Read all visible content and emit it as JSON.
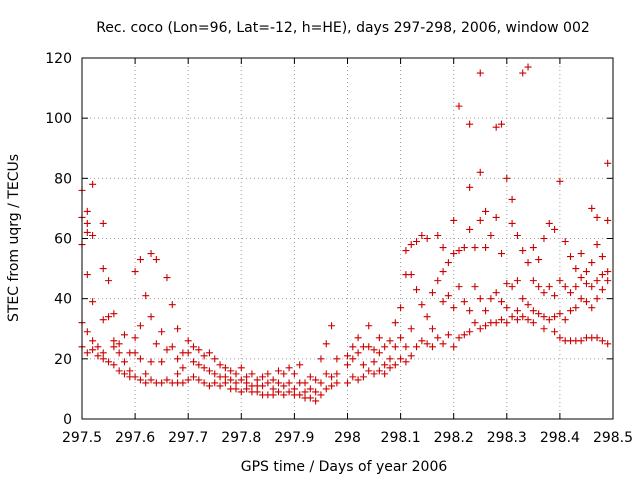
{
  "chart_data": {
    "type": "scatter",
    "title": "Rec. coco (Lon=96, Lat=-12, h=HE), days 297-298, 2006, window 002",
    "xlabel": "GPS time / Days of year 2006",
    "ylabel": "STEC from uqrg / TECUs",
    "xlim": [
      297.5,
      298.5
    ],
    "ylim": [
      0,
      120
    ],
    "x_ticks": [
      297.5,
      297.6,
      297.7,
      297.8,
      297.9,
      298,
      298.1,
      298.2,
      298.3,
      298.4,
      298.5
    ],
    "x_tick_labels": [
      "297.5",
      "297.6",
      "297.7",
      "297.8",
      "297.9",
      "298",
      "298.1",
      "298.2",
      "298.3",
      "298.4",
      "298.5"
    ],
    "y_ticks": [
      0,
      20,
      40,
      60,
      80,
      100,
      120
    ],
    "y_tick_labels": [
      "0",
      "20",
      "40",
      "60",
      "80",
      "100",
      "120"
    ],
    "grid": true,
    "marker": "plus",
    "color": "#cc0000",
    "points": [
      [
        297.5,
        76
      ],
      [
        297.5,
        67
      ],
      [
        297.5,
        58
      ],
      [
        297.5,
        24
      ],
      [
        297.5,
        32
      ],
      [
        297.51,
        69
      ],
      [
        297.51,
        65
      ],
      [
        297.51,
        62
      ],
      [
        297.51,
        48
      ],
      [
        297.51,
        29
      ],
      [
        297.51,
        22
      ],
      [
        297.52,
        78
      ],
      [
        297.52,
        61
      ],
      [
        297.52,
        39
      ],
      [
        297.52,
        26
      ],
      [
        297.52,
        23
      ],
      [
        297.53,
        24
      ],
      [
        297.53,
        21
      ],
      [
        297.54,
        65
      ],
      [
        297.54,
        50
      ],
      [
        297.54,
        33
      ],
      [
        297.54,
        22
      ],
      [
        297.54,
        20
      ],
      [
        297.55,
        46
      ],
      [
        297.55,
        34
      ],
      [
        297.55,
        19
      ],
      [
        297.56,
        35
      ],
      [
        297.56,
        26
      ],
      [
        297.56,
        24
      ],
      [
        297.56,
        18
      ],
      [
        297.57,
        25
      ],
      [
        297.57,
        22
      ],
      [
        297.57,
        16
      ],
      [
        297.58,
        28
      ],
      [
        297.58,
        19
      ],
      [
        297.58,
        15
      ],
      [
        297.59,
        22
      ],
      [
        297.59,
        16
      ],
      [
        297.59,
        14
      ],
      [
        297.6,
        49
      ],
      [
        297.6,
        27
      ],
      [
        297.6,
        22
      ],
      [
        297.6,
        14
      ],
      [
        297.61,
        53
      ],
      [
        297.61,
        31
      ],
      [
        297.61,
        20
      ],
      [
        297.61,
        13
      ],
      [
        297.62,
        41
      ],
      [
        297.62,
        15
      ],
      [
        297.62,
        12
      ],
      [
        297.63,
        55
      ],
      [
        297.63,
        34
      ],
      [
        297.63,
        19
      ],
      [
        297.63,
        13
      ],
      [
        297.64,
        53
      ],
      [
        297.64,
        25
      ],
      [
        297.64,
        12
      ],
      [
        297.65,
        29
      ],
      [
        297.65,
        19
      ],
      [
        297.65,
        12
      ],
      [
        297.66,
        47
      ],
      [
        297.66,
        23
      ],
      [
        297.66,
        13
      ],
      [
        297.67,
        38
      ],
      [
        297.67,
        24
      ],
      [
        297.67,
        12
      ],
      [
        297.68,
        30
      ],
      [
        297.68,
        20
      ],
      [
        297.68,
        15
      ],
      [
        297.68,
        12
      ],
      [
        297.69,
        22
      ],
      [
        297.69,
        17
      ],
      [
        297.69,
        12
      ],
      [
        297.7,
        26
      ],
      [
        297.7,
        22
      ],
      [
        297.7,
        13
      ],
      [
        297.71,
        24
      ],
      [
        297.71,
        19
      ],
      [
        297.71,
        14
      ],
      [
        297.72,
        23
      ],
      [
        297.72,
        18
      ],
      [
        297.72,
        13
      ],
      [
        297.73,
        21
      ],
      [
        297.73,
        17
      ],
      [
        297.73,
        12
      ],
      [
        297.74,
        22
      ],
      [
        297.74,
        16
      ],
      [
        297.74,
        11
      ],
      [
        297.75,
        20
      ],
      [
        297.75,
        15
      ],
      [
        297.75,
        12
      ],
      [
        297.76,
        18
      ],
      [
        297.76,
        14
      ],
      [
        297.76,
        11
      ],
      [
        297.77,
        17
      ],
      [
        297.77,
        14
      ],
      [
        297.77,
        12
      ],
      [
        297.78,
        16
      ],
      [
        297.78,
        13
      ],
      [
        297.78,
        10
      ],
      [
        297.79,
        15
      ],
      [
        297.79,
        12
      ],
      [
        297.79,
        10
      ],
      [
        297.8,
        17
      ],
      [
        297.8,
        13
      ],
      [
        297.8,
        9
      ],
      [
        297.81,
        14
      ],
      [
        297.81,
        12
      ],
      [
        297.81,
        10
      ],
      [
        297.82,
        15
      ],
      [
        297.82,
        11
      ],
      [
        297.82,
        9
      ],
      [
        297.83,
        13
      ],
      [
        297.83,
        11
      ],
      [
        297.83,
        9
      ],
      [
        297.84,
        14
      ],
      [
        297.84,
        11
      ],
      [
        297.84,
        8
      ],
      [
        297.85,
        15
      ],
      [
        297.85,
        12
      ],
      [
        297.85,
        8
      ],
      [
        297.86,
        13
      ],
      [
        297.86,
        10
      ],
      [
        297.86,
        8
      ],
      [
        297.87,
        16
      ],
      [
        297.87,
        12
      ],
      [
        297.87,
        9
      ],
      [
        297.88,
        15
      ],
      [
        297.88,
        11
      ],
      [
        297.88,
        8
      ],
      [
        297.89,
        17
      ],
      [
        297.89,
        12
      ],
      [
        297.89,
        9
      ],
      [
        297.9,
        15
      ],
      [
        297.9,
        10
      ],
      [
        297.9,
        8
      ],
      [
        297.91,
        18
      ],
      [
        297.91,
        12
      ],
      [
        297.91,
        8
      ],
      [
        297.92,
        12
      ],
      [
        297.92,
        9
      ],
      [
        297.92,
        7
      ],
      [
        297.93,
        14
      ],
      [
        297.93,
        10
      ],
      [
        297.93,
        7
      ],
      [
        297.94,
        13
      ],
      [
        297.94,
        9
      ],
      [
        297.94,
        6
      ],
      [
        297.95,
        20
      ],
      [
        297.95,
        12
      ],
      [
        297.95,
        8
      ],
      [
        297.96,
        25
      ],
      [
        297.96,
        15
      ],
      [
        297.96,
        10
      ],
      [
        297.97,
        31
      ],
      [
        297.97,
        14
      ],
      [
        297.97,
        11
      ],
      [
        297.98,
        20
      ],
      [
        297.98,
        15
      ],
      [
        297.98,
        12
      ],
      [
        298.0,
        21
      ],
      [
        298.0,
        18
      ],
      [
        298.0,
        12
      ],
      [
        298.01,
        24
      ],
      [
        298.01,
        20
      ],
      [
        298.01,
        14
      ],
      [
        298.02,
        27
      ],
      [
        298.02,
        22
      ],
      [
        298.02,
        13
      ],
      [
        298.03,
        24
      ],
      [
        298.03,
        18
      ],
      [
        298.03,
        14
      ],
      [
        298.04,
        31
      ],
      [
        298.04,
        24
      ],
      [
        298.04,
        16
      ],
      [
        298.05,
        23
      ],
      [
        298.05,
        19
      ],
      [
        298.05,
        15
      ],
      [
        298.06,
        27
      ],
      [
        298.06,
        22
      ],
      [
        298.06,
        16
      ],
      [
        298.07,
        24
      ],
      [
        298.07,
        18
      ],
      [
        298.07,
        15
      ],
      [
        298.08,
        26
      ],
      [
        298.08,
        20
      ],
      [
        298.08,
        17
      ],
      [
        298.09,
        32
      ],
      [
        298.09,
        24
      ],
      [
        298.09,
        18
      ],
      [
        298.1,
        37
      ],
      [
        298.1,
        27
      ],
      [
        298.1,
        20
      ],
      [
        298.11,
        56
      ],
      [
        298.11,
        48
      ],
      [
        298.11,
        24
      ],
      [
        298.11,
        19
      ],
      [
        298.12,
        58
      ],
      [
        298.12,
        48
      ],
      [
        298.12,
        30
      ],
      [
        298.12,
        21
      ],
      [
        298.13,
        59
      ],
      [
        298.13,
        43
      ],
      [
        298.13,
        24
      ],
      [
        298.14,
        61
      ],
      [
        298.14,
        38
      ],
      [
        298.14,
        26
      ],
      [
        298.15,
        60
      ],
      [
        298.15,
        34
      ],
      [
        298.15,
        25
      ],
      [
        298.16,
        42
      ],
      [
        298.16,
        30
      ],
      [
        298.16,
        24
      ],
      [
        298.17,
        61
      ],
      [
        298.17,
        46
      ],
      [
        298.17,
        27
      ],
      [
        298.18,
        57
      ],
      [
        298.18,
        49
      ],
      [
        298.18,
        39
      ],
      [
        298.18,
        25
      ],
      [
        298.19,
        52
      ],
      [
        298.19,
        41
      ],
      [
        298.19,
        28
      ],
      [
        298.2,
        66
      ],
      [
        298.2,
        55
      ],
      [
        298.2,
        37
      ],
      [
        298.2,
        24
      ],
      [
        298.21,
        104
      ],
      [
        298.21,
        56
      ],
      [
        298.21,
        44
      ],
      [
        298.21,
        27
      ],
      [
        298.22,
        57
      ],
      [
        298.22,
        39
      ],
      [
        298.22,
        28
      ],
      [
        298.23,
        77
      ],
      [
        298.23,
        98
      ],
      [
        298.23,
        63
      ],
      [
        298.23,
        36
      ],
      [
        298.23,
        29
      ],
      [
        298.24,
        57
      ],
      [
        298.24,
        44
      ],
      [
        298.24,
        32
      ],
      [
        298.25,
        115
      ],
      [
        298.25,
        82
      ],
      [
        298.25,
        66
      ],
      [
        298.25,
        40
      ],
      [
        298.25,
        30
      ],
      [
        298.26,
        69
      ],
      [
        298.26,
        57
      ],
      [
        298.26,
        36
      ],
      [
        298.26,
        31
      ],
      [
        298.27,
        61
      ],
      [
        298.27,
        40
      ],
      [
        298.27,
        32
      ],
      [
        298.28,
        97
      ],
      [
        298.28,
        67
      ],
      [
        298.28,
        42
      ],
      [
        298.28,
        32
      ],
      [
        298.29,
        98
      ],
      [
        298.29,
        55
      ],
      [
        298.29,
        39
      ],
      [
        298.29,
        33
      ],
      [
        298.3,
        80
      ],
      [
        298.3,
        45
      ],
      [
        298.3,
        37
      ],
      [
        298.3,
        32
      ],
      [
        298.31,
        73
      ],
      [
        298.31,
        65
      ],
      [
        298.31,
        44
      ],
      [
        298.31,
        34
      ],
      [
        298.32,
        61
      ],
      [
        298.32,
        46
      ],
      [
        298.32,
        36
      ],
      [
        298.32,
        33
      ],
      [
        298.33,
        115
      ],
      [
        298.33,
        56
      ],
      [
        298.33,
        40
      ],
      [
        298.33,
        34
      ],
      [
        298.34,
        117
      ],
      [
        298.34,
        52
      ],
      [
        298.34,
        38
      ],
      [
        298.34,
        33
      ],
      [
        298.35,
        57
      ],
      [
        298.35,
        46
      ],
      [
        298.35,
        36
      ],
      [
        298.35,
        32
      ],
      [
        298.36,
        53
      ],
      [
        298.36,
        44
      ],
      [
        298.36,
        35
      ],
      [
        298.37,
        60
      ],
      [
        298.37,
        42
      ],
      [
        298.37,
        34
      ],
      [
        298.37,
        30
      ],
      [
        298.38,
        65
      ],
      [
        298.38,
        44
      ],
      [
        298.38,
        33
      ],
      [
        298.39,
        63
      ],
      [
        298.39,
        41
      ],
      [
        298.39,
        34
      ],
      [
        298.39,
        29
      ],
      [
        298.4,
        79
      ],
      [
        298.4,
        46
      ],
      [
        298.4,
        35
      ],
      [
        298.4,
        27
      ],
      [
        298.41,
        59
      ],
      [
        298.41,
        44
      ],
      [
        298.41,
        33
      ],
      [
        298.41,
        26
      ],
      [
        298.42,
        54
      ],
      [
        298.42,
        42
      ],
      [
        298.42,
        36
      ],
      [
        298.42,
        26
      ],
      [
        298.43,
        50
      ],
      [
        298.43,
        44
      ],
      [
        298.43,
        37
      ],
      [
        298.43,
        26
      ],
      [
        298.44,
        55
      ],
      [
        298.44,
        47
      ],
      [
        298.44,
        40
      ],
      [
        298.44,
        26
      ],
      [
        298.45,
        49
      ],
      [
        298.45,
        45
      ],
      [
        298.45,
        39
      ],
      [
        298.45,
        27
      ],
      [
        298.46,
        70
      ],
      [
        298.46,
        52
      ],
      [
        298.46,
        44
      ],
      [
        298.46,
        37
      ],
      [
        298.46,
        27
      ],
      [
        298.47,
        67
      ],
      [
        298.47,
        58
      ],
      [
        298.47,
        46
      ],
      [
        298.47,
        40
      ],
      [
        298.47,
        27
      ],
      [
        298.48,
        54
      ],
      [
        298.48,
        48
      ],
      [
        298.48,
        43
      ],
      [
        298.48,
        26
      ],
      [
        298.49,
        85
      ],
      [
        298.49,
        66
      ],
      [
        298.49,
        49
      ],
      [
        298.49,
        46
      ],
      [
        298.49,
        25
      ]
    ]
  }
}
